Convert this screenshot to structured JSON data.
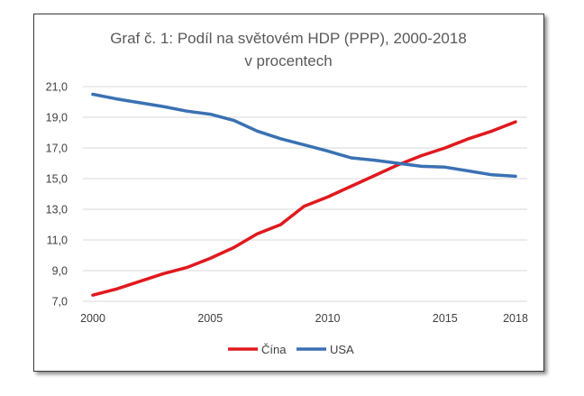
{
  "chart_data": {
    "type": "line",
    "title": [
      "Graf č. 1: Podíl na světovém HDP (PPP), 2000-2018",
      "v procentech"
    ],
    "xlabel": "",
    "ylabel": "",
    "x": [
      2000,
      2001,
      2002,
      2003,
      2004,
      2005,
      2006,
      2007,
      2008,
      2009,
      2010,
      2011,
      2012,
      2013,
      2014,
      2015,
      2016,
      2017,
      2018
    ],
    "xticks": [
      {
        "value": 2000,
        "label": "2000"
      },
      {
        "value": 2005,
        "label": "2005"
      },
      {
        "value": 2010,
        "label": "2010"
      },
      {
        "value": 2015,
        "label": "2015"
      },
      {
        "value": 2018,
        "label": "2018"
      }
    ],
    "xlim": [
      2000,
      2018
    ],
    "ylim": [
      7,
      21
    ],
    "yticks": [
      {
        "value": 7,
        "label": "7,0"
      },
      {
        "value": 9,
        "label": "9,0"
      },
      {
        "value": 11,
        "label": "11,0"
      },
      {
        "value": 13,
        "label": "13,0"
      },
      {
        "value": 15,
        "label": "15,0"
      },
      {
        "value": 17,
        "label": "17,0"
      },
      {
        "value": 19,
        "label": "19,0"
      },
      {
        "value": 21,
        "label": "21,0"
      }
    ],
    "grid": "horizontal",
    "legend_position": "bottom",
    "series": [
      {
        "name": "Čína",
        "color": "#e0191e",
        "values": [
          7.4,
          7.8,
          8.3,
          8.8,
          9.2,
          9.8,
          10.5,
          11.4,
          12.0,
          13.2,
          13.8,
          14.5,
          15.2,
          15.9,
          16.5,
          17.0,
          17.6,
          18.1,
          18.7
        ]
      },
      {
        "name": "USA",
        "color": "#3a71b3",
        "values": [
          20.5,
          20.2,
          19.95,
          19.7,
          19.4,
          19.2,
          18.8,
          18.1,
          17.6,
          17.2,
          16.8,
          16.35,
          16.2,
          16.0,
          15.8,
          15.75,
          15.5,
          15.25,
          15.15
        ]
      }
    ]
  }
}
